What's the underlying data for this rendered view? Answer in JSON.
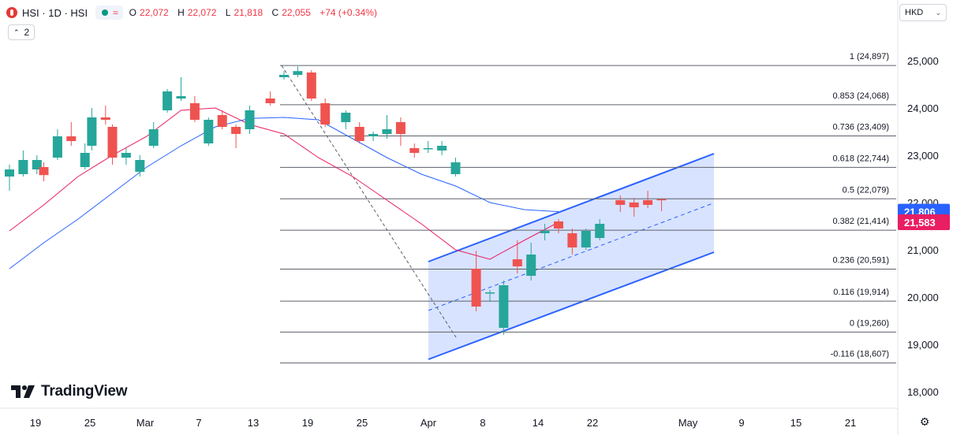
{
  "header": {
    "symbol": "HSI · 1D · HSI",
    "ohlc": [
      {
        "label": "O",
        "value": "22,072"
      },
      {
        "label": "H",
        "value": "22,072"
      },
      {
        "label": "L",
        "value": "21,818"
      },
      {
        "label": "C",
        "value": "22,055"
      }
    ],
    "change": "+74 (+0.34%)",
    "indicator_count": "2",
    "currency": "HKD"
  },
  "brand": "TradingView",
  "colors": {
    "up": "#26a69a",
    "down": "#ef5350",
    "ma_fast": "#e91e63",
    "ma_slow": "#2962ff",
    "channel": "#2962ff",
    "fib": "#131722"
  },
  "chart_data": {
    "type": "candlestick",
    "x_ticks": [
      "19",
      "25",
      "Mar",
      "7",
      "13",
      "19",
      "25",
      "Apr",
      "8",
      "14",
      "22",
      "May",
      "9",
      "15",
      "21"
    ],
    "y_ticks": [
      "25,000",
      "24,000",
      "23,000",
      "22,000",
      "21,000",
      "20,000",
      "19,000",
      "18,000"
    ],
    "ylim": [
      17700,
      25450
    ],
    "candles": [
      {
        "date": "Feb 17",
        "o": 22550,
        "h": 22800,
        "l": 22250,
        "c": 22700
      },
      {
        "date": "Feb 18",
        "o": 22600,
        "h": 23100,
        "l": 22550,
        "c": 22900
      },
      {
        "date": "Feb 19",
        "o": 22700,
        "h": 23000,
        "l": 22600,
        "c": 22900
      },
      {
        "date": "Feb 20",
        "o": 22750,
        "h": 22850,
        "l": 22450,
        "c": 22580
      },
      {
        "date": "Feb 21",
        "o": 22950,
        "h": 23550,
        "l": 22900,
        "c": 23400
      },
      {
        "date": "Feb 24",
        "o": 23400,
        "h": 23700,
        "l": 23200,
        "c": 23300
      },
      {
        "date": "Feb 25",
        "o": 22750,
        "h": 23250,
        "l": 22700,
        "c": 23050
      },
      {
        "date": "Feb 26",
        "o": 23200,
        "h": 24000,
        "l": 23100,
        "c": 23800
      },
      {
        "date": "Feb 27",
        "o": 23800,
        "h": 24050,
        "l": 23650,
        "c": 23750
      },
      {
        "date": "Feb 28",
        "o": 23600,
        "h": 23650,
        "l": 22800,
        "c": 22950
      },
      {
        "date": "Mar 3",
        "o": 22950,
        "h": 23150,
        "l": 22800,
        "c": 23050
      },
      {
        "date": "Mar 4",
        "o": 22650,
        "h": 23000,
        "l": 22550,
        "c": 22900
      },
      {
        "date": "Mar 5",
        "o": 23200,
        "h": 23700,
        "l": 23150,
        "c": 23550
      },
      {
        "date": "Mar 6",
        "o": 23950,
        "h": 24400,
        "l": 23900,
        "c": 24350
      },
      {
        "date": "Mar 7",
        "o": 24200,
        "h": 24650,
        "l": 24150,
        "c": 24250
      },
      {
        "date": "Mar 10",
        "o": 24100,
        "h": 24250,
        "l": 23700,
        "c": 23750
      },
      {
        "date": "Mar 11",
        "o": 23250,
        "h": 23800,
        "l": 23200,
        "c": 23750
      },
      {
        "date": "Mar 12",
        "o": 23850,
        "h": 23950,
        "l": 23550,
        "c": 23600
      },
      {
        "date": "Mar 13",
        "o": 23600,
        "h": 23650,
        "l": 23150,
        "c": 23450
      },
      {
        "date": "Mar 14",
        "o": 23550,
        "h": 24050,
        "l": 23450,
        "c": 23950
      },
      {
        "date": "Mar 17",
        "o": 24200,
        "h": 24350,
        "l": 24050,
        "c": 24100
      },
      {
        "date": "Mar 18",
        "o": 24650,
        "h": 24780,
        "l": 24600,
        "c": 24700
      },
      {
        "date": "Mar 19",
        "o": 24700,
        "h": 24880,
        "l": 24650,
        "c": 24780
      },
      {
        "date": "Mar 20",
        "o": 24750,
        "h": 24800,
        "l": 24150,
        "c": 24200
      },
      {
        "date": "Mar 21",
        "o": 24100,
        "h": 24200,
        "l": 23600,
        "c": 23650
      },
      {
        "date": "Mar 24",
        "o": 23700,
        "h": 23950,
        "l": 23550,
        "c": 23900
      },
      {
        "date": "Mar 25",
        "o": 23600,
        "h": 23700,
        "l": 23250,
        "c": 23300
      },
      {
        "date": "Mar 26",
        "o": 23400,
        "h": 23500,
        "l": 23300,
        "c": 23450
      },
      {
        "date": "Mar 27",
        "o": 23450,
        "h": 23850,
        "l": 23350,
        "c": 23550
      },
      {
        "date": "Mar 28",
        "o": 23700,
        "h": 23800,
        "l": 23200,
        "c": 23450
      },
      {
        "date": "Mar 31",
        "o": 23150,
        "h": 23250,
        "l": 22950,
        "c": 23050
      },
      {
        "date": "Apr 1",
        "o": 23150,
        "h": 23300,
        "l": 23050,
        "c": 23150
      },
      {
        "date": "Apr 2",
        "o": 23100,
        "h": 23300,
        "l": 23000,
        "c": 23200
      },
      {
        "date": "Apr 3",
        "o": 22600,
        "h": 22950,
        "l": 22550,
        "c": 22850
      },
      {
        "date": "Apr 7",
        "o": 20600,
        "h": 20980,
        "l": 19700,
        "c": 19800
      },
      {
        "date": "Apr 8",
        "o": 20100,
        "h": 20150,
        "l": 19900,
        "c": 20100
      },
      {
        "date": "Apr 9",
        "o": 19350,
        "h": 20350,
        "l": 19200,
        "c": 20250
      },
      {
        "date": "Apr 10",
        "o": 20800,
        "h": 21200,
        "l": 20500,
        "c": 20650
      },
      {
        "date": "Apr 11",
        "o": 20450,
        "h": 21150,
        "l": 20350,
        "c": 20900
      },
      {
        "date": "Apr 14",
        "o": 21350,
        "h": 21550,
        "l": 21200,
        "c": 21400
      },
      {
        "date": "Apr 15",
        "o": 21600,
        "h": 21650,
        "l": 21350,
        "c": 21450
      },
      {
        "date": "Apr 16",
        "o": 21350,
        "h": 21450,
        "l": 20900,
        "c": 21050
      },
      {
        "date": "Apr 17",
        "o": 21050,
        "h": 21450,
        "l": 21000,
        "c": 21400
      },
      {
        "date": "Apr 22",
        "o": 21250,
        "h": 21650,
        "l": 21200,
        "c": 21550
      },
      {
        "date": "Apr 23",
        "o": 22050,
        "h": 22150,
        "l": 21800,
        "c": 21950
      },
      {
        "date": "Apr 24",
        "o": 22000,
        "h": 22100,
        "l": 21700,
        "c": 21900
      },
      {
        "date": "Apr 25",
        "o": 22050,
        "h": 22250,
        "l": 21880,
        "c": 21950
      },
      {
        "date": "Apr 28",
        "o": 22072,
        "h": 22072,
        "l": 21818,
        "c": 22055
      }
    ],
    "moving_averages": [
      {
        "color": "#e91e63",
        "label": "21,583",
        "points": [
          [
            0,
            21400
          ],
          [
            5,
            21950
          ],
          [
            10,
            22550
          ],
          [
            15,
            23000
          ],
          [
            20,
            23400
          ],
          [
            25,
            23950
          ],
          [
            30,
            24000
          ],
          [
            35,
            23650
          ],
          [
            40,
            23450
          ],
          [
            45,
            22950
          ],
          [
            50,
            22550
          ],
          [
            55,
            22050
          ],
          [
            60,
            21550
          ],
          [
            65,
            21000
          ],
          [
            70,
            20800
          ],
          [
            75,
            21200
          ],
          [
            80,
            21583
          ]
        ]
      },
      {
        "color": "#2962ff",
        "label": "21,806",
        "points": [
          [
            0,
            20600
          ],
          [
            5,
            21150
          ],
          [
            10,
            21650
          ],
          [
            15,
            22200
          ],
          [
            20,
            22750
          ],
          [
            25,
            23200
          ],
          [
            30,
            23600
          ],
          [
            35,
            23780
          ],
          [
            40,
            23800
          ],
          [
            45,
            23750
          ],
          [
            50,
            23350
          ],
          [
            55,
            22950
          ],
          [
            60,
            22600
          ],
          [
            65,
            22350
          ],
          [
            70,
            22000
          ],
          [
            75,
            21850
          ],
          [
            80,
            21806
          ]
        ]
      }
    ],
    "fib_levels": [
      {
        "ratio": "1",
        "value": "24,897"
      },
      {
        "ratio": "0.853",
        "value": "24,068"
      },
      {
        "ratio": "0.736",
        "value": "23,409"
      },
      {
        "ratio": "0.618",
        "value": "22,744"
      },
      {
        "ratio": "0.5",
        "value": "22,079"
      },
      {
        "ratio": "0.382",
        "value": "21,414"
      },
      {
        "ratio": "0.236",
        "value": "20,591"
      },
      {
        "ratio": "0.116",
        "value": "19,914"
      },
      {
        "ratio": "0",
        "value": "19,260"
      },
      {
        "ratio": "-0.116",
        "value": "18,607"
      }
    ],
    "price_labels": [
      {
        "value": "21,806",
        "color": "#2962ff"
      },
      {
        "value": "21,583",
        "color": "#e91e63"
      }
    ]
  }
}
